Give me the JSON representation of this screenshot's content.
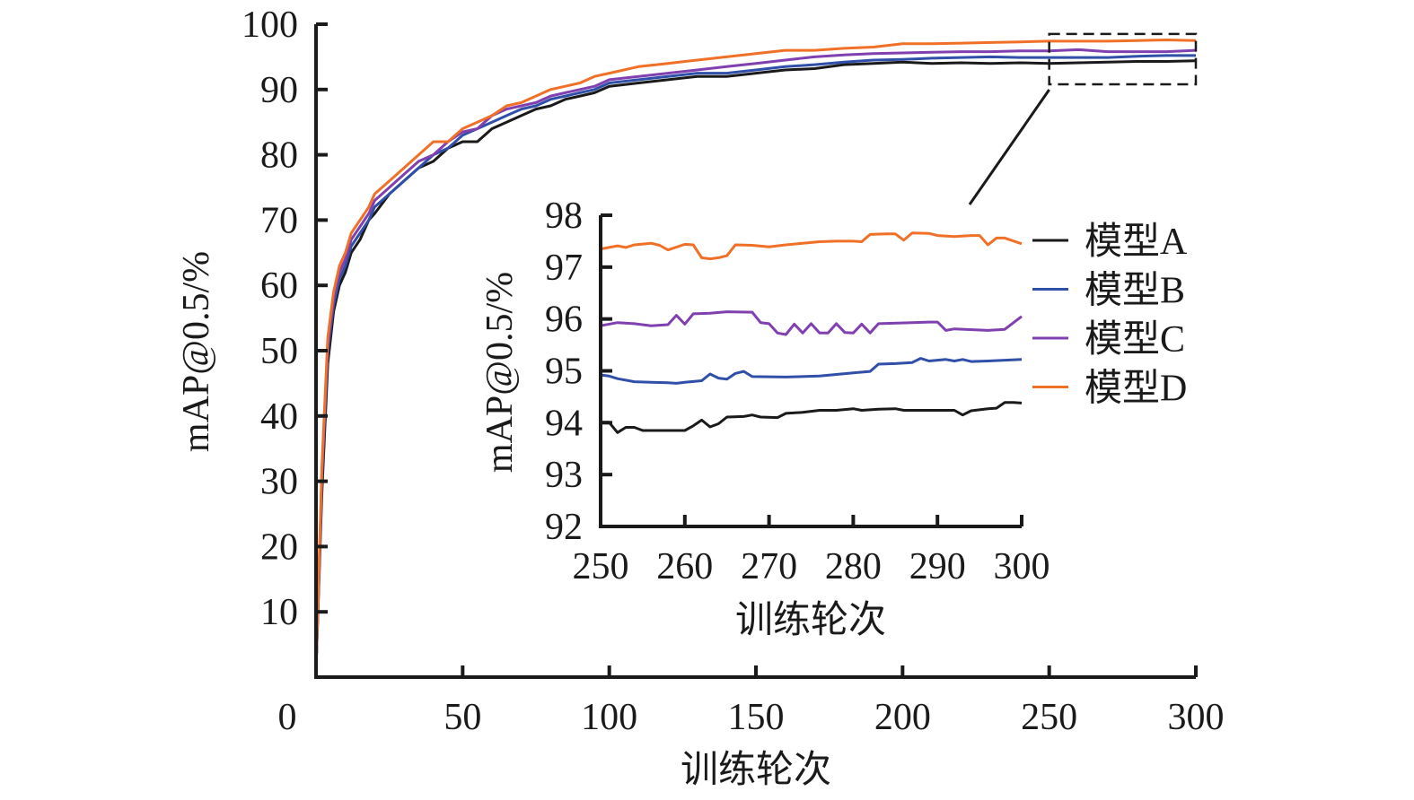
{
  "chart_data": [
    {
      "type": "line",
      "title": "",
      "xlabel": "训练轮次",
      "ylabel": "mAP@0.5/%",
      "xlim": [
        0,
        300
      ],
      "ylim": [
        0,
        100
      ],
      "xticks": [
        "0",
        "50",
        "100",
        "150",
        "200",
        "250",
        "300"
      ],
      "yticks": [
        "10",
        "20",
        "30",
        "40",
        "50",
        "60",
        "70",
        "80",
        "90",
        "100"
      ],
      "grid": false,
      "x": [
        0,
        2,
        4,
        6,
        8,
        10,
        12,
        15,
        18,
        20,
        25,
        30,
        35,
        40,
        45,
        50,
        55,
        60,
        65,
        70,
        75,
        80,
        85,
        90,
        95,
        100,
        110,
        120,
        130,
        140,
        150,
        160,
        170,
        180,
        190,
        200,
        210,
        220,
        230,
        240,
        250,
        260,
        270,
        280,
        290,
        300
      ],
      "series": [
        {
          "name": "模型A",
          "color": "#1a1a1a",
          "values": [
            1,
            28,
            48,
            56,
            60,
            62,
            65,
            67,
            70,
            71,
            74,
            76,
            78,
            79,
            81,
            82,
            82,
            84,
            85,
            86,
            87,
            87.5,
            88.5,
            89,
            89.5,
            90.5,
            91,
            91.5,
            92,
            92,
            92.5,
            93,
            93.2,
            93.8,
            94,
            94.2,
            94,
            94.1,
            94,
            94.1,
            94,
            94.1,
            94.2,
            94.3,
            94.3,
            94.4
          ]
        },
        {
          "name": "模型B",
          "color": "#2f4fa8",
          "values": [
            1,
            30,
            50,
            57,
            61,
            63,
            66,
            68,
            70,
            72,
            74,
            76,
            78,
            80,
            81,
            83,
            84,
            85,
            86,
            87,
            87.5,
            88.5,
            89,
            89.5,
            90,
            91,
            91.5,
            92,
            92.5,
            92.5,
            93,
            93.5,
            93.8,
            94.2,
            94.5,
            94.6,
            94.8,
            94.9,
            95,
            94.9,
            94.9,
            94.9,
            94.9,
            95.1,
            95.2,
            95.2
          ]
        },
        {
          "name": "模型C",
          "color": "#8040b0",
          "values": [
            1,
            31,
            51,
            58,
            62,
            64,
            67,
            69,
            71,
            73,
            75,
            77,
            79,
            80,
            82,
            83.5,
            84,
            86,
            87,
            87.5,
            88,
            89,
            89.5,
            90,
            90.5,
            91.5,
            92,
            92.5,
            93,
            93.5,
            94,
            94.5,
            95,
            95.3,
            95.5,
            95.6,
            95.7,
            95.8,
            95.8,
            95.9,
            95.9,
            96.1,
            95.8,
            95.8,
            95.8,
            96
          ]
        },
        {
          "name": "模型D",
          "color": "#f07028",
          "values": [
            1,
            32,
            52,
            59,
            63,
            65,
            68,
            70,
            72,
            74,
            76,
            78,
            80,
            82,
            82,
            84,
            85,
            86,
            87.5,
            88,
            89,
            90,
            90.5,
            91,
            92,
            92.5,
            93.5,
            94,
            94.5,
            95,
            95.5,
            96,
            96,
            96.3,
            96.5,
            97,
            97,
            97.1,
            97.2,
            97.3,
            97.4,
            97.4,
            97.4,
            97.5,
            97.6,
            97.5
          ]
        }
      ],
      "zoom_box": {
        "x": [
          250,
          300
        ],
        "y": [
          90.8,
          98.5
        ]
      }
    },
    {
      "type": "line",
      "title": "",
      "xlabel": "训练轮次",
      "ylabel": "mAP@0.5/%",
      "xlim": [
        250,
        300
      ],
      "ylim": [
        92,
        98
      ],
      "xticks": [
        "250",
        "260",
        "270",
        "280",
        "290",
        "300"
      ],
      "yticks": [
        "92",
        "93",
        "94",
        "95",
        "96",
        "97",
        "98"
      ],
      "grid": false,
      "legend": "right",
      "series": [
        {
          "name": "模型A",
          "color": "#1a1a1a",
          "x": [
            250,
            251,
            252,
            253,
            254,
            255,
            258,
            260,
            261,
            262,
            263,
            264,
            265,
            267,
            268,
            269,
            271,
            272,
            274,
            276,
            278,
            280,
            281,
            283,
            285,
            286,
            290,
            292,
            293,
            294,
            296,
            297,
            298,
            299,
            300
          ],
          "values": [
            94.01,
            94.01,
            93.81,
            93.91,
            93.91,
            93.85,
            93.85,
            93.85,
            93.94,
            94.05,
            93.92,
            93.98,
            94.11,
            94.12,
            94.15,
            94.11,
            94.1,
            94.18,
            94.2,
            94.24,
            94.24,
            94.27,
            94.24,
            94.26,
            94.27,
            94.24,
            94.24,
            94.24,
            94.15,
            94.23,
            94.27,
            94.28,
            94.39,
            94.39,
            94.38
          ]
        },
        {
          "name": "模型B",
          "color": "#2f4fa8",
          "x": [
            250,
            251,
            252,
            254,
            256,
            258,
            259,
            260,
            262,
            263,
            264,
            265,
            266,
            267,
            268,
            272,
            276,
            278,
            280,
            282,
            283,
            285,
            287,
            288,
            289,
            291,
            292,
            293,
            294,
            296,
            300
          ],
          "values": [
            94.92,
            94.9,
            94.85,
            94.79,
            94.78,
            94.77,
            94.76,
            94.78,
            94.81,
            94.94,
            94.86,
            94.84,
            94.95,
            94.99,
            94.89,
            94.88,
            94.9,
            94.93,
            94.96,
            94.99,
            95.13,
            95.14,
            95.16,
            95.24,
            95.19,
            95.22,
            95.19,
            95.22,
            95.18,
            95.19,
            95.22
          ]
        },
        {
          "name": "模型C",
          "color": "#8040b0",
          "x": [
            250,
            252,
            254,
            256,
            258,
            259,
            260,
            261,
            263,
            265,
            268,
            269,
            270,
            271,
            272,
            273,
            274,
            275,
            276,
            277,
            278,
            279,
            280,
            281,
            282,
            283,
            287,
            289,
            290,
            291,
            292,
            296,
            298,
            300
          ],
          "values": [
            95.87,
            95.93,
            95.91,
            95.87,
            95.89,
            96.07,
            95.9,
            96.1,
            96.11,
            96.14,
            96.13,
            95.93,
            95.91,
            95.73,
            95.7,
            95.9,
            95.73,
            95.91,
            95.73,
            95.73,
            95.91,
            95.74,
            95.73,
            95.9,
            95.73,
            95.91,
            95.93,
            95.94,
            95.94,
            95.78,
            95.81,
            95.78,
            95.8,
            96.05
          ]
        },
        {
          "name": "模型D",
          "color": "#f07028",
          "x": [
            250,
            252,
            253,
            254,
            256,
            257,
            258,
            260,
            261,
            262,
            263,
            264,
            265,
            266,
            268,
            270,
            272,
            274,
            276,
            278,
            280,
            281,
            282,
            284,
            285,
            286,
            287,
            289,
            290,
            292,
            294,
            295,
            296,
            297,
            298,
            300
          ],
          "values": [
            97.35,
            97.41,
            97.38,
            97.43,
            97.46,
            97.42,
            97.33,
            97.44,
            97.43,
            97.18,
            97.16,
            97.18,
            97.22,
            97.43,
            97.42,
            97.39,
            97.43,
            97.46,
            97.49,
            97.5,
            97.5,
            97.49,
            97.63,
            97.64,
            97.64,
            97.52,
            97.66,
            97.65,
            97.61,
            97.59,
            97.61,
            97.61,
            97.43,
            97.56,
            97.56,
            97.45
          ]
        }
      ]
    }
  ]
}
